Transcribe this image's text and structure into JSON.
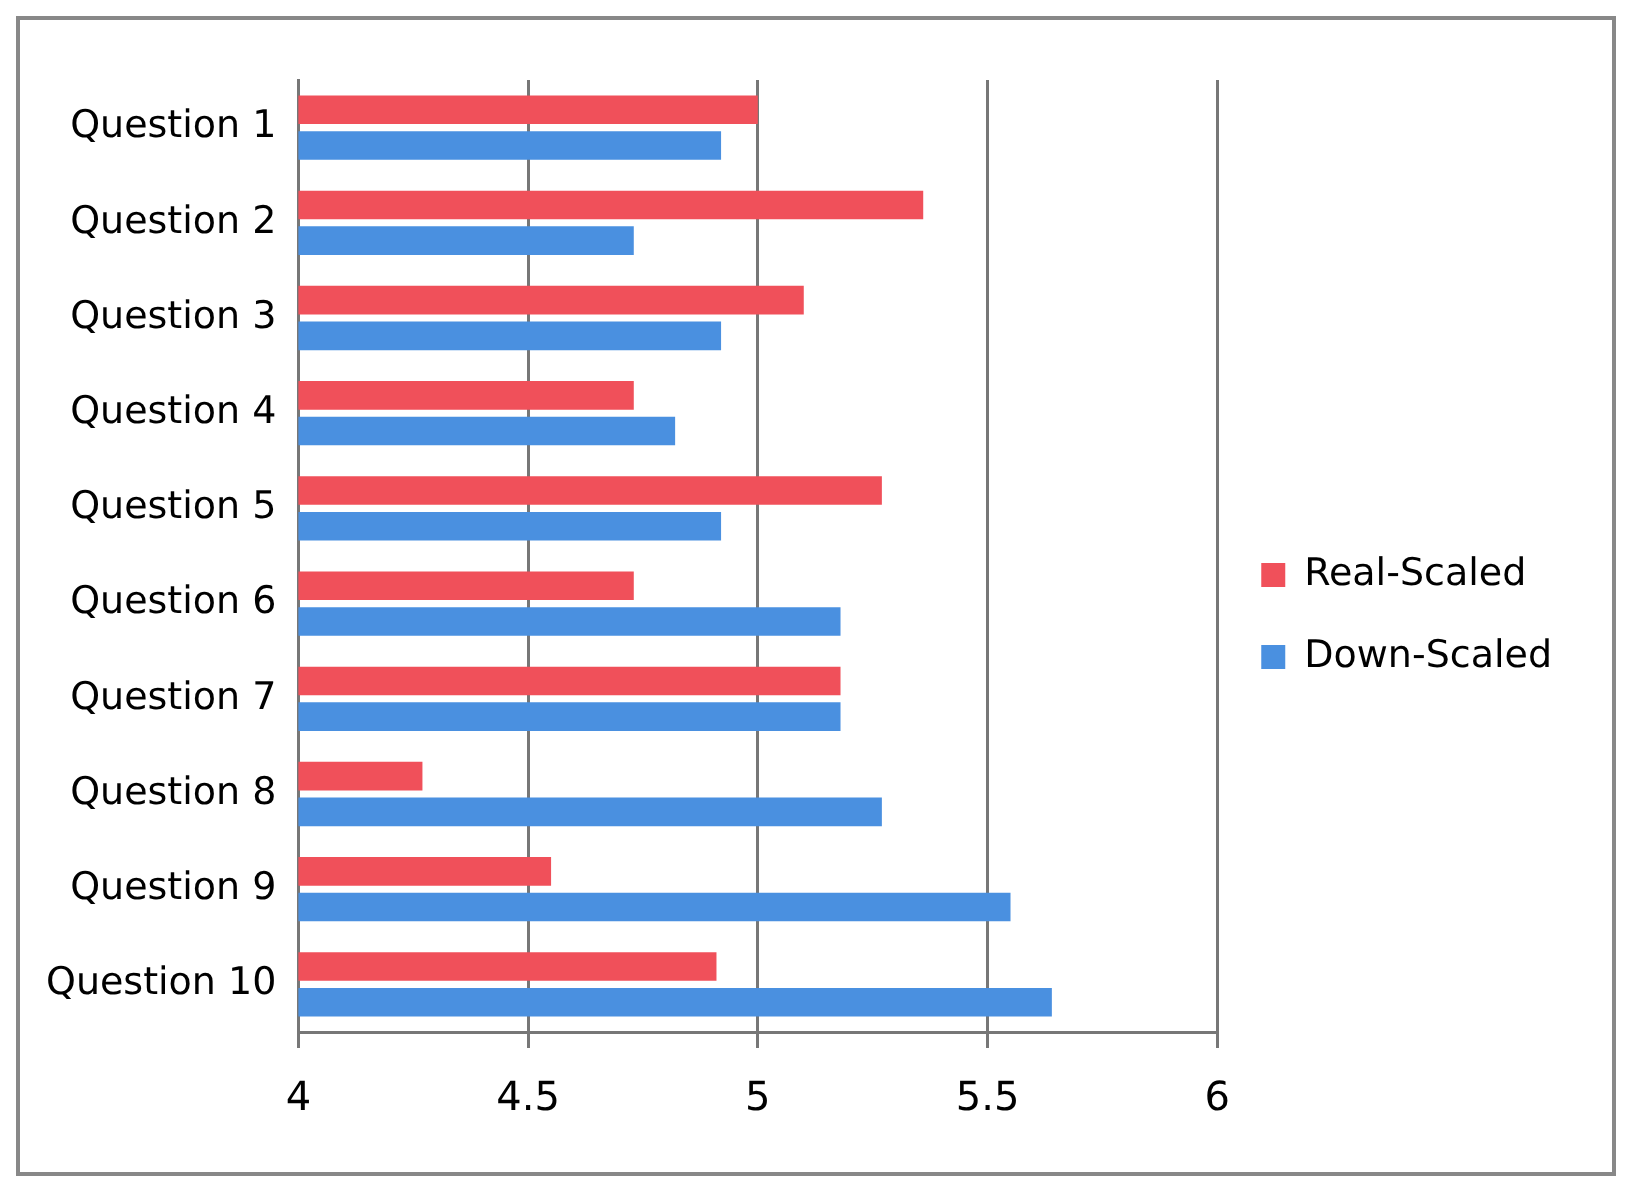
{
  "chart_data": {
    "type": "bar",
    "orientation": "horizontal",
    "categories": [
      "Question 1",
      "Question 2",
      "Question 3",
      "Question 4",
      "Question 5",
      "Question 6",
      "Question 7",
      "Question 8",
      "Question 9",
      "Question 10"
    ],
    "series": [
      {
        "name": "Real-Scaled",
        "color": "#f0505a",
        "values": [
          5.0,
          5.36,
          5.1,
          4.73,
          5.27,
          4.73,
          5.18,
          4.27,
          4.55,
          4.91
        ]
      },
      {
        "name": "Down-Scaled",
        "color": "#4a90e0",
        "values": [
          4.92,
          4.73,
          4.92,
          4.82,
          4.92,
          5.18,
          5.18,
          5.27,
          5.55,
          5.64
        ]
      }
    ],
    "xlim": [
      4,
      6
    ],
    "xticks": [
      4,
      4.5,
      5,
      5.5,
      6
    ],
    "grid": "x",
    "legend": "right"
  }
}
